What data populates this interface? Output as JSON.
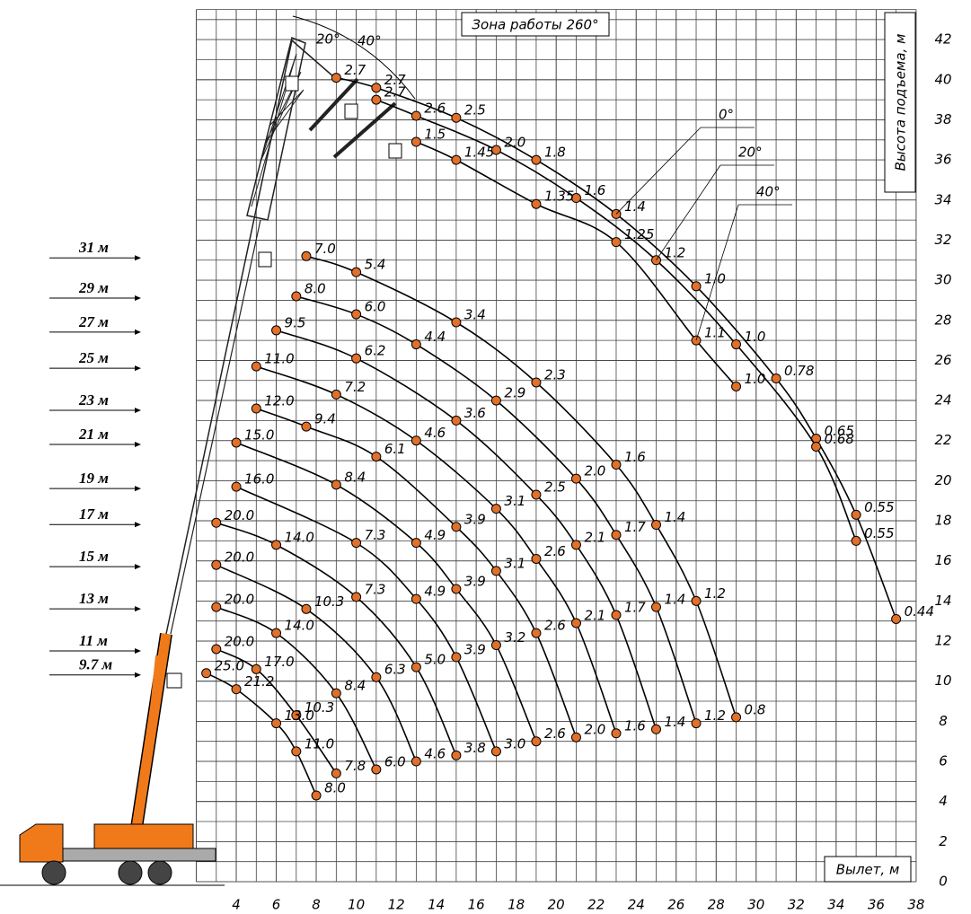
{
  "title": "Зона работы 260°",
  "x_label": "Вылет, м",
  "y_label": "Высота подъема, м",
  "xlim": [
    2,
    38
  ],
  "ylim": [
    0,
    43.5
  ],
  "xticks": [
    4,
    6,
    8,
    10,
    12,
    14,
    16,
    18,
    20,
    22,
    24,
    26,
    28,
    30,
    32,
    34,
    36,
    38
  ],
  "yticks": [
    0,
    2,
    4,
    6,
    8,
    10,
    12,
    14,
    16,
    18,
    20,
    22,
    24,
    26,
    28,
    30,
    32,
    34,
    36,
    38,
    40,
    42
  ],
  "jib_angle_marks": [
    "20°",
    "40°"
  ],
  "jib_curves": [
    {
      "name": "0°",
      "points": [
        {
          "x": 9,
          "y": 40.1,
          "load": "2.7"
        },
        {
          "x": 11,
          "y": 39.6,
          "load": "2.7"
        },
        {
          "x": 15,
          "y": 38.1,
          "load": "2.5"
        },
        {
          "x": 19,
          "y": 36.0,
          "load": "1.8"
        },
        {
          "x": 23,
          "y": 33.3,
          "load": "1.4"
        },
        {
          "x": 27,
          "y": 29.7,
          "load": "1.0"
        },
        {
          "x": 31,
          "y": 25.1,
          "load": "0.78"
        },
        {
          "x": 33,
          "y": 22.1,
          "load": "0.65"
        },
        {
          "x": 35,
          "y": 18.3,
          "load": "0.55"
        },
        {
          "x": 37,
          "y": 13.1,
          "load": "0.44"
        }
      ]
    },
    {
      "name": "20°",
      "points": [
        {
          "x": 11,
          "y": 39.0,
          "load": "2.7"
        },
        {
          "x": 13,
          "y": 38.2,
          "load": "2.6"
        },
        {
          "x": 17,
          "y": 36.5,
          "load": "2.0"
        },
        {
          "x": 21,
          "y": 34.1,
          "load": "1.6"
        },
        {
          "x": 25,
          "y": 31.0,
          "load": "1.2"
        },
        {
          "x": 29,
          "y": 26.8,
          "load": "1.0"
        },
        {
          "x": 33,
          "y": 21.7,
          "load": "0.68"
        },
        {
          "x": 35,
          "y": 17.0,
          "load": "0.55"
        }
      ]
    },
    {
      "name": "40°",
      "points": [
        {
          "x": 13,
          "y": 36.9,
          "load": "1.5"
        },
        {
          "x": 15,
          "y": 36.0,
          "load": "1.45"
        },
        {
          "x": 19,
          "y": 33.8,
          "load": "1.35"
        },
        {
          "x": 23,
          "y": 31.9,
          "load": "1.25"
        },
        {
          "x": 27,
          "y": 27.0,
          "load": "1.1"
        },
        {
          "x": 29,
          "y": 24.7,
          "load": "1.0"
        }
      ]
    }
  ],
  "boom_curves": [
    {
      "name": "31 м",
      "points": [
        {
          "x": 7.5,
          "y": 31.2,
          "load": "7.0"
        },
        {
          "x": 10,
          "y": 30.4,
          "load": "5.4"
        },
        {
          "x": 15,
          "y": 27.9,
          "load": "3.4"
        },
        {
          "x": 19,
          "y": 24.9,
          "load": "2.3"
        },
        {
          "x": 23,
          "y": 20.8,
          "load": "1.6"
        },
        {
          "x": 25,
          "y": 17.8,
          "load": "1.4"
        },
        {
          "x": 27,
          "y": 14.0,
          "load": "1.2"
        },
        {
          "x": 29,
          "y": 8.2,
          "load": "0.8"
        }
      ]
    },
    {
      "name": "29 м",
      "points": [
        {
          "x": 7,
          "y": 29.2,
          "load": "8.0"
        },
        {
          "x": 10,
          "y": 28.3,
          "load": "6.0"
        },
        {
          "x": 13,
          "y": 26.8,
          "load": "4.4"
        },
        {
          "x": 17,
          "y": 24.0,
          "load": "2.9"
        },
        {
          "x": 21,
          "y": 20.1,
          "load": "2.0"
        },
        {
          "x": 23,
          "y": 17.3,
          "load": "1.7"
        },
        {
          "x": 25,
          "y": 13.7,
          "load": "1.4"
        },
        {
          "x": 27,
          "y": 7.9,
          "load": "1.2"
        }
      ]
    },
    {
      "name": "27 м",
      "points": [
        {
          "x": 6,
          "y": 27.5,
          "load": "9.5"
        },
        {
          "x": 10,
          "y": 26.1,
          "load": "6.2"
        },
        {
          "x": 15,
          "y": 23.0,
          "load": "3.6"
        },
        {
          "x": 19,
          "y": 19.3,
          "load": "2.5"
        },
        {
          "x": 21,
          "y": 16.8,
          "load": "2.1"
        },
        {
          "x": 23,
          "y": 13.3,
          "load": "1.7"
        },
        {
          "x": 25,
          "y": 7.6,
          "load": "1.4"
        }
      ]
    },
    {
      "name": "25 м",
      "points": [
        {
          "x": 5,
          "y": 25.7,
          "load": "11.0"
        },
        {
          "x": 9,
          "y": 24.3,
          "load": "7.2"
        },
        {
          "x": 13,
          "y": 22.0,
          "load": "4.6"
        },
        {
          "x": 17,
          "y": 18.6,
          "load": "3.1"
        },
        {
          "x": 19,
          "y": 16.1,
          "load": "2.6"
        },
        {
          "x": 21,
          "y": 12.9,
          "load": "2.1"
        },
        {
          "x": 23,
          "y": 7.4,
          "load": "1.6"
        }
      ]
    },
    {
      "name": "23 м",
      "points": [
        {
          "x": 5,
          "y": 23.6,
          "load": "12.0"
        },
        {
          "x": 7.5,
          "y": 22.7,
          "load": "9.4"
        },
        {
          "x": 11,
          "y": 21.2,
          "load": "6.1"
        },
        {
          "x": 15,
          "y": 17.7,
          "load": "3.9"
        },
        {
          "x": 17,
          "y": 15.5,
          "load": "3.1"
        },
        {
          "x": 19,
          "y": 12.4,
          "load": "2.6"
        },
        {
          "x": 21,
          "y": 7.2,
          "load": "2.0"
        }
      ]
    },
    {
      "name": "21 м",
      "points": [
        {
          "x": 4,
          "y": 21.9,
          "load": "15.0"
        },
        {
          "x": 9,
          "y": 19.8,
          "load": "8.4"
        },
        {
          "x": 13,
          "y": 16.9,
          "load": "4.9"
        },
        {
          "x": 15,
          "y": 14.6,
          "load": "3.9"
        },
        {
          "x": 17,
          "y": 11.8,
          "load": "3.2"
        },
        {
          "x": 19,
          "y": 7.0,
          "load": "2.6"
        }
      ]
    },
    {
      "name": "19 м",
      "points": [
        {
          "x": 4,
          "y": 19.7,
          "load": "16.0"
        },
        {
          "x": 10,
          "y": 16.9,
          "load": "7.3"
        },
        {
          "x": 13,
          "y": 14.1,
          "load": "4.9"
        },
        {
          "x": 15,
          "y": 11.2,
          "load": "3.9"
        },
        {
          "x": 17,
          "y": 6.5,
          "load": "3.0"
        }
      ]
    },
    {
      "name": "17 м",
      "points": [
        {
          "x": 3,
          "y": 17.9,
          "load": "20.0"
        },
        {
          "x": 6,
          "y": 16.8,
          "load": "14.0"
        },
        {
          "x": 10,
          "y": 14.2,
          "load": "7.3"
        },
        {
          "x": 13,
          "y": 10.7,
          "load": "5.0"
        },
        {
          "x": 15,
          "y": 6.3,
          "load": "3.8"
        }
      ]
    },
    {
      "name": "15 м",
      "points": [
        {
          "x": 3,
          "y": 15.8,
          "load": "20.0"
        },
        {
          "x": 7.5,
          "y": 13.6,
          "load": "10.3"
        },
        {
          "x": 11,
          "y": 10.2,
          "load": "6.3"
        },
        {
          "x": 13,
          "y": 6.0,
          "load": "4.6"
        }
      ]
    },
    {
      "name": "13 м",
      "points": [
        {
          "x": 3,
          "y": 13.7,
          "load": "20.0"
        },
        {
          "x": 6,
          "y": 12.4,
          "load": "14.0"
        },
        {
          "x": 9,
          "y": 9.4,
          "load": "8.4"
        },
        {
          "x": 11,
          "y": 5.6,
          "load": "6.0"
        }
      ]
    },
    {
      "name": "11 м",
      "points": [
        {
          "x": 3,
          "y": 11.6,
          "load": "20.0"
        },
        {
          "x": 5,
          "y": 10.6,
          "load": "17.0"
        },
        {
          "x": 7,
          "y": 8.3,
          "load": "10.3"
        },
        {
          "x": 9,
          "y": 5.4,
          "load": "7.8"
        }
      ]
    },
    {
      "name": "9.7 м",
      "points": [
        {
          "x": 2.5,
          "y": 10.4,
          "load": "25.0"
        },
        {
          "x": 4,
          "y": 9.6,
          "load": "21.2"
        },
        {
          "x": 6,
          "y": 7.9,
          "load": "13.0"
        },
        {
          "x": 7,
          "y": 6.5,
          "load": "11.0"
        },
        {
          "x": 8,
          "y": 4.3,
          "load": "8.0"
        }
      ]
    }
  ]
}
